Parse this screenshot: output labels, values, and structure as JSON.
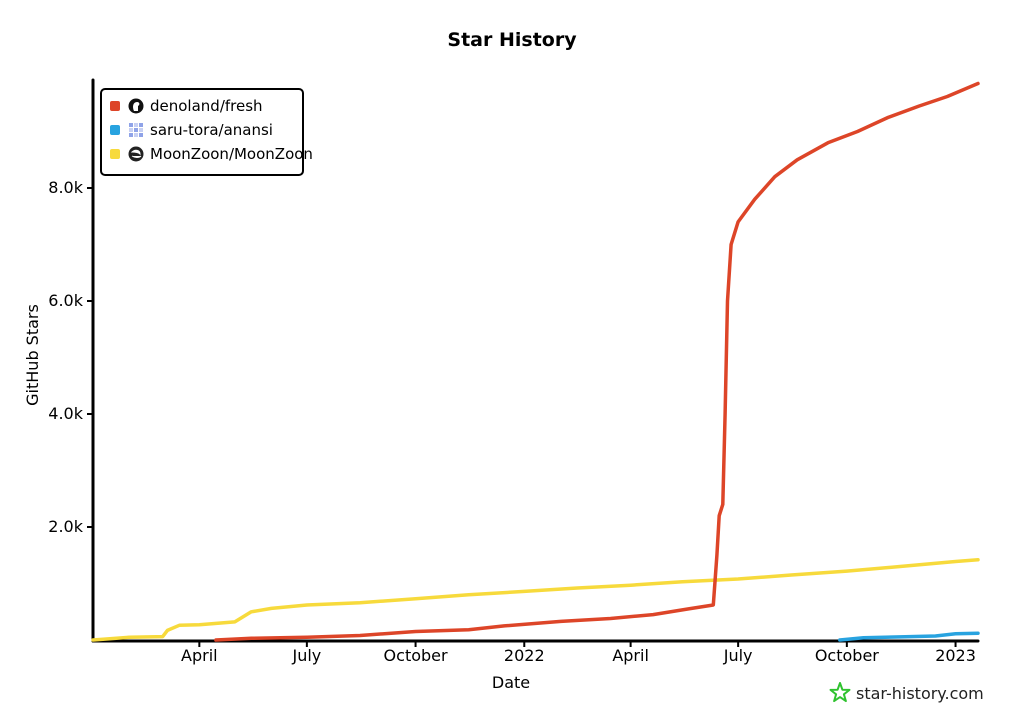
{
  "chart_data": {
    "type": "line",
    "title": "Star History",
    "xlabel": "Date",
    "ylabel": "GitHub Stars",
    "x_ticks": [
      "April",
      "July",
      "October",
      "2022",
      "April",
      "July",
      "October",
      "2023"
    ],
    "y_ticks": [
      "2.0k",
      "4.0k",
      "6.0k",
      "8.0k"
    ],
    "xlim": [
      "2021-01-01",
      "2023-01-20"
    ],
    "ylim": [
      0,
      9900
    ],
    "legend_position": "top-left",
    "series": [
      {
        "name": "denoland/fresh",
        "color": "#dd4528",
        "icon": "denoland-avatar-icon",
        "points": [
          [
            "2021-04-15",
            0
          ],
          [
            "2021-05-15",
            30
          ],
          [
            "2021-07-01",
            50
          ],
          [
            "2021-08-15",
            80
          ],
          [
            "2021-10-01",
            150
          ],
          [
            "2021-11-15",
            180
          ],
          [
            "2021-12-15",
            250
          ],
          [
            "2022-02-01",
            330
          ],
          [
            "2022-03-15",
            380
          ],
          [
            "2022-04-20",
            450
          ],
          [
            "2022-05-20",
            550
          ],
          [
            "2022-06-10",
            620
          ],
          [
            "2022-06-13",
            1500
          ],
          [
            "2022-06-15",
            2200
          ],
          [
            "2022-06-18",
            2400
          ],
          [
            "2022-06-20",
            4000
          ],
          [
            "2022-06-22",
            6000
          ],
          [
            "2022-06-25",
            7000
          ],
          [
            "2022-07-01",
            7400
          ],
          [
            "2022-07-15",
            7800
          ],
          [
            "2022-08-01",
            8200
          ],
          [
            "2022-08-20",
            8500
          ],
          [
            "2022-09-15",
            8800
          ],
          [
            "2022-10-10",
            9000
          ],
          [
            "2022-11-05",
            9250
          ],
          [
            "2022-12-01",
            9450
          ],
          [
            "2022-12-25",
            9620
          ],
          [
            "2023-01-20",
            9850
          ]
        ]
      },
      {
        "name": "saru-tora/anansi",
        "color": "#28a3e0",
        "icon": "anansi-avatar-icon",
        "points": [
          [
            "2022-09-25",
            0
          ],
          [
            "2022-10-15",
            40
          ],
          [
            "2022-11-15",
            55
          ],
          [
            "2022-12-15",
            70
          ],
          [
            "2023-01-01",
            110
          ],
          [
            "2023-01-20",
            120
          ]
        ]
      },
      {
        "name": "MoonZoon/MoonZoon",
        "color": "#f7da3c",
        "icon": "moonzoon-avatar-icon",
        "points": [
          [
            "2021-01-01",
            0
          ],
          [
            "2021-02-01",
            50
          ],
          [
            "2021-03-01",
            60
          ],
          [
            "2021-03-05",
            170
          ],
          [
            "2021-03-15",
            260
          ],
          [
            "2021-04-01",
            270
          ],
          [
            "2021-05-01",
            320
          ],
          [
            "2021-05-15",
            500
          ],
          [
            "2021-06-01",
            560
          ],
          [
            "2021-07-01",
            620
          ],
          [
            "2021-08-15",
            660
          ],
          [
            "2021-10-01",
            730
          ],
          [
            "2021-11-15",
            800
          ],
          [
            "2022-01-01",
            860
          ],
          [
            "2022-02-15",
            920
          ],
          [
            "2022-04-01",
            970
          ],
          [
            "2022-05-15",
            1030
          ],
          [
            "2022-07-01",
            1080
          ],
          [
            "2022-08-15",
            1150
          ],
          [
            "2022-10-01",
            1220
          ],
          [
            "2022-11-15",
            1300
          ],
          [
            "2023-01-01",
            1390
          ],
          [
            "2023-01-20",
            1420
          ]
        ]
      }
    ]
  },
  "brand": {
    "text": "star-history.com",
    "icon": "star-history-logo-icon",
    "color": "#2fc22f"
  }
}
